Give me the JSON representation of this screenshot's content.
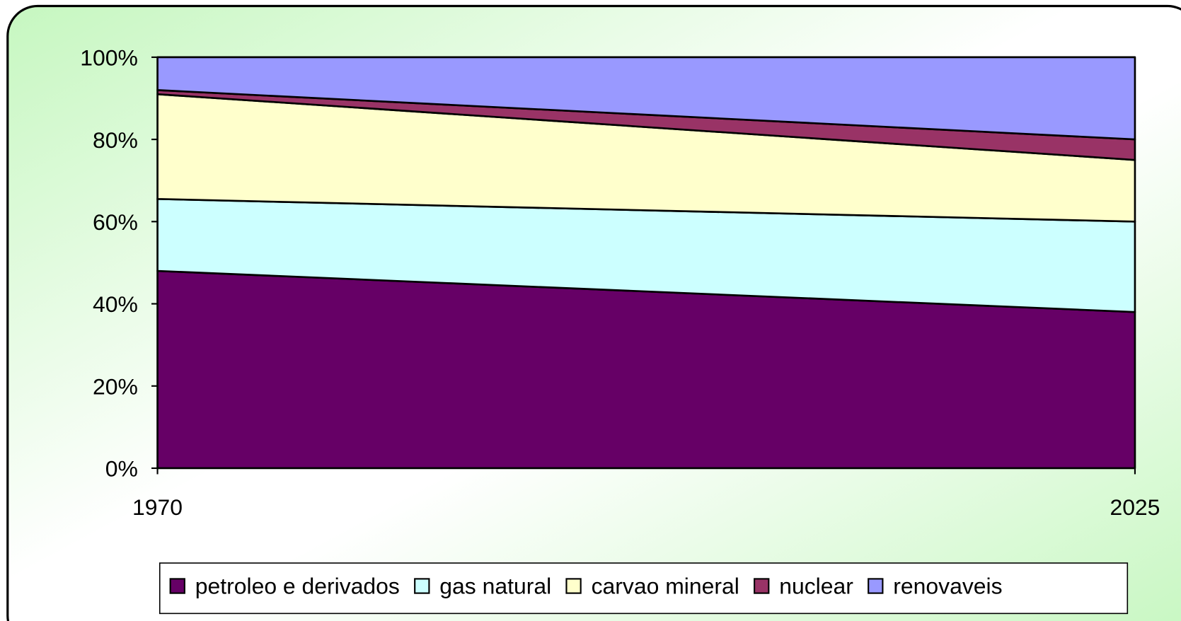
{
  "chart_data": {
    "type": "stacked_area",
    "x": [
      1970,
      2025
    ],
    "xlim": [
      1970,
      2025
    ],
    "xticks": [
      1970,
      2025
    ],
    "ylim": [
      0,
      100
    ],
    "yticks": [
      {
        "value": 0,
        "label": "0%"
      },
      {
        "value": 20,
        "label": "20%"
      },
      {
        "value": 40,
        "label": "40%"
      },
      {
        "value": 60,
        "label": "60%"
      },
      {
        "value": 80,
        "label": "80%"
      },
      {
        "value": 100,
        "label": "100%"
      }
    ],
    "series": [
      {
        "name": "petroleo e derivados",
        "color": "#660066",
        "values": [
          48,
          38
        ]
      },
      {
        "name": "gas natural",
        "color": "#ccffff",
        "values": [
          17.5,
          22
        ]
      },
      {
        "name": "carvao mineral",
        "color": "#ffffcc",
        "values": [
          25.5,
          15
        ]
      },
      {
        "name": "nuclear",
        "color": "#993366",
        "values": [
          1,
          5
        ]
      },
      {
        "name": "renovaveis",
        "color": "#9999ff",
        "values": [
          8,
          20
        ]
      }
    ],
    "legend": "bottom"
  }
}
